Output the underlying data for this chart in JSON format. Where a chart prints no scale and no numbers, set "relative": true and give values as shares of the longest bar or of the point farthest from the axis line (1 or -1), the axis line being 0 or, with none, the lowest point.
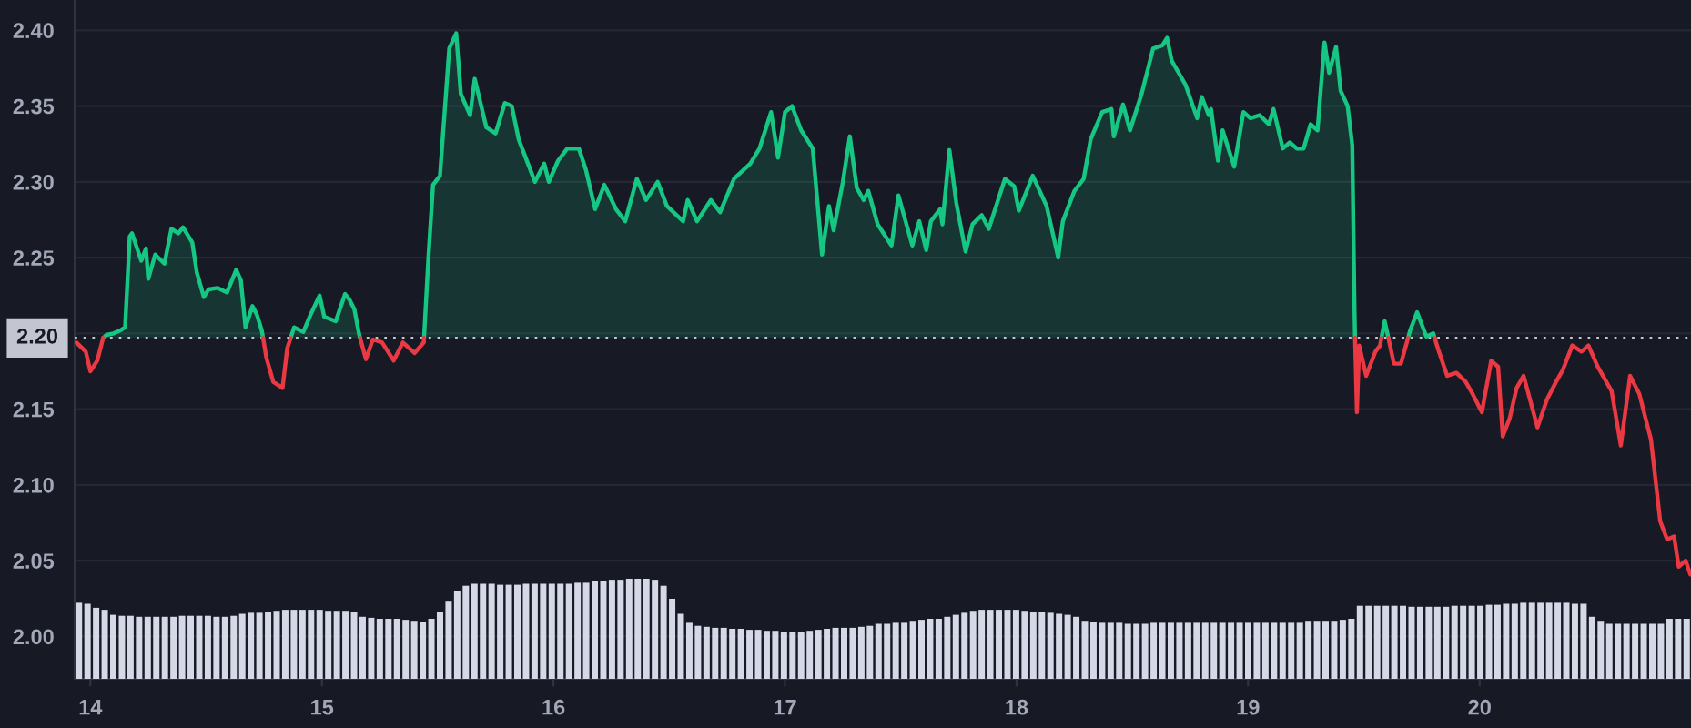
{
  "chart_data": [
    {
      "type": "area",
      "xlim": [
        13.932,
        20.913
      ],
      "ylim": [
        1.972,
        2.42
      ],
      "xticks": [
        14,
        15,
        16,
        17,
        18,
        19,
        20
      ],
      "yticks": [
        {
          "value": 2.0,
          "label": "2.00"
        },
        2.05,
        {
          "value": 2.1,
          "label": "2.10"
        },
        2.15,
        {
          "value": 2.2,
          "label": null
        },
        2.25,
        {
          "value": 2.3,
          "label": "2.30"
        },
        2.35,
        {
          "value": 2.4,
          "label": "2.40"
        }
      ],
      "grid": "y",
      "ref_lines": [
        {
          "axis": "y",
          "value": 2.197,
          "label": "2.20",
          "color": "#c3c6d1",
          "line_style": "dotted"
        }
      ],
      "series": [
        {
          "color": "#16c784",
          "x": [
            14.055,
            14.07,
            14.1,
            14.13,
            14.15,
            14.17,
            14.18,
            14.22,
            14.24,
            14.25,
            14.28,
            14.32,
            14.35,
            14.38,
            14.4,
            14.44,
            14.46,
            14.49,
            14.51,
            14.55,
            14.59,
            14.63,
            14.65,
            14.67,
            14.7,
            14.72,
            14.74,
            14.746,
            14.8,
            14.865,
            14.88,
            14.92,
            14.95,
            14.99,
            15.01,
            15.06,
            15.1,
            15.12,
            15.14,
            15.16,
            15.165,
            15.3,
            15.441,
            15.46,
            15.48,
            15.51,
            15.55,
            15.58,
            15.6,
            15.64,
            15.66,
            15.71,
            15.75,
            15.79,
            15.82,
            15.85,
            15.89,
            15.92,
            15.96,
            15.98,
            16.02,
            16.06,
            16.11,
            16.14,
            16.18,
            16.22,
            16.27,
            16.31,
            16.36,
            16.4,
            16.45,
            16.49,
            16.56,
            16.58,
            16.62,
            16.68,
            16.72,
            16.78,
            16.85,
            16.89,
            16.94,
            16.97,
            17.0,
            17.03,
            17.07,
            17.12,
            17.16,
            17.19,
            17.21,
            17.25,
            17.28,
            17.31,
            17.34,
            17.36,
            17.4,
            17.46,
            17.49,
            17.55,
            17.58,
            17.61,
            17.63,
            17.67,
            17.68,
            17.71,
            17.74,
            17.78,
            17.81,
            17.85,
            17.88,
            17.95,
            17.99,
            18.01,
            18.07,
            18.13,
            18.18,
            18.2,
            18.25,
            18.29,
            18.32,
            18.37,
            18.41,
            18.42,
            18.46,
            18.49,
            18.54,
            18.59,
            18.63,
            18.65,
            18.67,
            18.73,
            18.78,
            18.8,
            18.83,
            18.84,
            18.87,
            18.89,
            18.94,
            18.98,
            19.01,
            19.05,
            19.09,
            19.11,
            19.15,
            19.18,
            19.21,
            19.24,
            19.27,
            19.3,
            19.33,
            19.35,
            19.38,
            19.4,
            19.43,
            19.45,
            19.46,
            19.462,
            19.52,
            19.576,
            19.59,
            19.606,
            19.65,
            19.691,
            19.7,
            19.73,
            19.77,
            19.8,
            19.806
          ],
          "values": [
            2.197,
            2.199,
            2.2,
            2.202,
            2.204,
            2.264,
            2.266,
            2.248,
            2.256,
            2.236,
            2.252,
            2.246,
            2.269,
            2.266,
            2.27,
            2.26,
            2.24,
            2.224,
            2.229,
            2.23,
            2.227,
            2.242,
            2.235,
            2.204,
            2.218,
            2.212,
            2.202,
            2.197,
            null,
            2.197,
            2.204,
            2.201,
            2.212,
            2.225,
            2.211,
            2.208,
            2.226,
            2.222,
            2.216,
            2.2,
            2.197,
            null,
            2.197,
            2.25,
            2.298,
            2.304,
            2.388,
            2.398,
            2.358,
            2.344,
            2.368,
            2.336,
            2.332,
            2.352,
            2.35,
            2.328,
            2.312,
            2.3,
            2.312,
            2.3,
            2.314,
            2.322,
            2.322,
            2.308,
            2.282,
            2.298,
            2.282,
            2.274,
            2.302,
            2.288,
            2.3,
            2.284,
            2.274,
            2.288,
            2.274,
            2.288,
            2.28,
            2.302,
            2.312,
            2.322,
            2.346,
            2.316,
            2.346,
            2.35,
            2.334,
            2.322,
            2.252,
            2.284,
            2.268,
            2.3,
            2.33,
            2.296,
            2.288,
            2.294,
            2.272,
            2.258,
            2.291,
            2.258,
            2.274,
            2.255,
            2.274,
            2.282,
            2.272,
            2.321,
            2.286,
            2.254,
            2.272,
            2.278,
            2.269,
            2.302,
            2.297,
            2.281,
            2.304,
            2.284,
            2.25,
            2.274,
            2.294,
            2.302,
            2.328,
            2.346,
            2.348,
            2.33,
            2.351,
            2.334,
            2.358,
            2.388,
            2.39,
            2.395,
            2.38,
            2.364,
            2.342,
            2.356,
            2.344,
            2.348,
            2.314,
            2.334,
            2.31,
            2.346,
            2.342,
            2.344,
            2.338,
            2.348,
            2.322,
            2.326,
            2.322,
            2.322,
            2.338,
            2.334,
            2.392,
            2.372,
            2.389,
            2.36,
            2.35,
            2.324,
            2.212,
            2.197,
            null,
            2.197,
            2.208,
            2.197,
            null,
            2.197,
            2.202,
            2.214,
            2.198,
            2.2,
            2.197
          ]
        },
        {
          "color": "#ea3943",
          "type": "line",
          "x": [
            13.94,
            13.98,
            14.0,
            14.03,
            14.055,
            14.4,
            14.746,
            14.76,
            14.79,
            14.83,
            14.85,
            14.865,
            15.0,
            15.165,
            15.19,
            15.22,
            15.26,
            15.31,
            15.35,
            15.4,
            15.44,
            15.441,
            17.0,
            19.462,
            19.47,
            19.48,
            19.51,
            19.55,
            19.57,
            19.576,
            19.59,
            19.606,
            19.63,
            19.66,
            19.691,
            19.75,
            19.806,
            19.82,
            19.86,
            19.9,
            19.94,
            19.97,
            20.01,
            20.05,
            20.08,
            20.1,
            20.13,
            20.16,
            20.19,
            20.25,
            20.29,
            20.33,
            20.36,
            20.4,
            20.44,
            20.47,
            20.51,
            20.57,
            20.61,
            20.65,
            20.69,
            20.74,
            20.78,
            20.81,
            20.84,
            20.86,
            20.89,
            20.91
          ],
          "values": [
            2.194,
            2.188,
            2.175,
            2.182,
            2.197,
            null,
            2.197,
            2.184,
            2.168,
            2.164,
            2.19,
            2.197,
            null,
            2.197,
            2.183,
            2.196,
            2.194,
            2.182,
            2.194,
            2.187,
            2.194,
            2.197,
            null,
            2.197,
            2.148,
            2.192,
            2.172,
            2.188,
            2.192,
            2.197,
            null,
            2.197,
            2.18,
            2.18,
            2.197,
            null,
            2.197,
            2.19,
            2.172,
            2.174,
            2.168,
            2.16,
            2.148,
            2.182,
            2.178,
            2.132,
            2.144,
            2.164,
            2.172,
            2.138,
            2.156,
            2.168,
            2.176,
            2.192,
            2.188,
            2.192,
            2.178,
            2.162,
            2.126,
            2.172,
            2.16,
            2.13,
            2.076,
            2.064,
            2.066,
            2.046,
            2.05,
            2.041
          ]
        }
      ]
    },
    {
      "type": "bar",
      "relative": true,
      "color": "#d5d8e6",
      "categories": [
        null,
        null,
        null,
        null,
        null,
        null,
        null,
        null,
        null,
        null,
        null,
        null,
        null,
        null,
        null,
        null,
        null,
        null,
        null,
        null,
        null,
        null,
        null,
        null,
        null,
        null,
        null,
        null,
        null,
        null,
        null,
        null,
        null,
        null,
        null,
        null,
        null,
        null,
        null,
        null,
        null,
        null,
        null,
        null,
        null,
        null,
        null,
        null,
        null,
        null,
        null,
        null,
        null,
        null,
        null,
        null,
        null,
        null,
        null,
        null,
        null,
        null,
        null,
        null,
        null,
        null,
        null,
        null,
        null,
        null,
        null,
        null,
        null,
        null,
        null,
        null,
        null,
        null,
        null,
        null,
        null,
        null,
        null,
        null,
        null,
        null,
        null,
        null,
        null,
        null,
        null,
        null,
        null,
        null,
        null,
        null,
        null,
        null,
        null,
        null,
        null,
        null,
        null,
        null,
        null,
        null,
        null,
        null,
        null,
        null,
        null,
        null,
        null,
        null,
        null,
        null,
        null,
        null,
        null,
        null,
        null,
        null,
        null,
        null,
        null,
        null,
        null,
        null,
        null,
        null,
        null,
        null,
        null,
        null,
        null,
        null,
        null,
        null,
        null,
        null,
        null,
        null,
        null,
        null,
        null,
        null,
        null,
        null,
        null,
        null,
        null,
        null,
        null,
        null,
        null,
        null,
        null,
        null,
        null,
        null,
        null,
        null,
        null,
        null,
        null,
        null,
        null,
        null,
        null,
        null,
        null,
        null,
        null,
        null,
        null,
        null,
        null,
        null,
        null,
        null,
        null,
        null,
        null,
        null,
        null,
        null,
        null,
        null
      ],
      "values": [
        0.76,
        0.75,
        0.71,
        0.69,
        0.64,
        0.63,
        0.63,
        0.62,
        0.62,
        0.62,
        0.62,
        0.62,
        0.63,
        0.63,
        0.63,
        0.63,
        0.62,
        0.62,
        0.63,
        0.65,
        0.66,
        0.66,
        0.67,
        0.68,
        0.69,
        0.69,
        0.69,
        0.69,
        0.69,
        0.68,
        0.68,
        0.68,
        0.67,
        0.62,
        0.61,
        0.6,
        0.6,
        0.6,
        0.59,
        0.58,
        0.57,
        0.6,
        0.67,
        0.78,
        0.88,
        0.93,
        0.95,
        0.95,
        0.95,
        0.94,
        0.94,
        0.94,
        0.95,
        0.95,
        0.95,
        0.95,
        0.95,
        0.95,
        0.96,
        0.96,
        0.98,
        0.98,
        0.99,
        0.99,
        1.0,
        1.0,
        1.0,
        0.99,
        0.93,
        0.8,
        0.65,
        0.56,
        0.53,
        0.52,
        0.51,
        0.51,
        0.5,
        0.5,
        0.49,
        0.49,
        0.48,
        0.48,
        0.47,
        0.47,
        0.47,
        0.48,
        0.49,
        0.5,
        0.51,
        0.51,
        0.51,
        0.52,
        0.53,
        0.55,
        0.55,
        0.56,
        0.56,
        0.58,
        0.59,
        0.6,
        0.6,
        0.62,
        0.64,
        0.66,
        0.68,
        0.69,
        0.69,
        0.69,
        0.69,
        0.69,
        0.68,
        0.67,
        0.67,
        0.66,
        0.65,
        0.64,
        0.62,
        0.58,
        0.57,
        0.56,
        0.56,
        0.56,
        0.55,
        0.55,
        0.55,
        0.56,
        0.56,
        0.56,
        0.56,
        0.56,
        0.56,
        0.56,
        0.56,
        0.56,
        0.56,
        0.56,
        0.56,
        0.56,
        0.56,
        0.56,
        0.56,
        0.56,
        0.56,
        0.58,
        0.58,
        0.58,
        0.58,
        0.59,
        0.6,
        0.73,
        0.73,
        0.73,
        0.73,
        0.73,
        0.73,
        0.72,
        0.72,
        0.72,
        0.72,
        0.72,
        0.73,
        0.73,
        0.73,
        0.73,
        0.74,
        0.74,
        0.75,
        0.75,
        0.76,
        0.76,
        0.76,
        0.76,
        0.76,
        0.76,
        0.75,
        0.75,
        0.62,
        0.58,
        0.55,
        0.55,
        0.55,
        0.55,
        0.55,
        0.55,
        0.55,
        0.6,
        0.6,
        0.6
      ]
    }
  ]
}
